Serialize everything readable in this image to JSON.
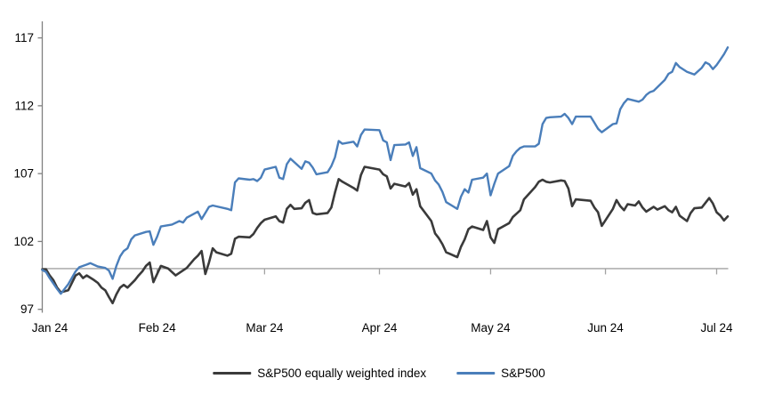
{
  "chart_data": {
    "type": "line",
    "title": "",
    "xlabel": "",
    "ylabel": "",
    "grid": false,
    "background": "#ffffff",
    "y_axis": {
      "ticks": [
        97,
        102,
        107,
        112,
        117
      ],
      "range": [
        97,
        117
      ],
      "axis_color": "#808080",
      "label_color": "#000000"
    },
    "x_axis": {
      "tick_labels": [
        "Jan 24",
        "Feb 24",
        "Mar 24",
        "Apr 24",
        "May 24",
        "Jun 24",
        "Jul 24"
      ],
      "tick_days": [
        0,
        31,
        60,
        91,
        121,
        152,
        182
      ],
      "days_range": [
        0,
        185
      ],
      "line_color": "#a2a2a2"
    },
    "baseline_value": 100,
    "legend_position": "bottom-center",
    "series": [
      {
        "name": "S&P500 equally weighted index",
        "color": "#3a3a3a",
        "width": 2.6,
        "points": [
          [
            0,
            99.95
          ],
          [
            1,
            99.95
          ],
          [
            2,
            99.5
          ],
          [
            3,
            99.15
          ],
          [
            4,
            98.6
          ],
          [
            5,
            98.25
          ],
          [
            7,
            98.4
          ],
          [
            8,
            98.95
          ],
          [
            9,
            99.5
          ],
          [
            10,
            99.65
          ],
          [
            11,
            99.3
          ],
          [
            12,
            99.5
          ],
          [
            14,
            99.15
          ],
          [
            15,
            98.95
          ],
          [
            16,
            98.6
          ],
          [
            17,
            98.4
          ],
          [
            18,
            97.9
          ],
          [
            19,
            97.45
          ],
          [
            20,
            98.1
          ],
          [
            21,
            98.6
          ],
          [
            22,
            98.8
          ],
          [
            23,
            98.6
          ],
          [
            25,
            99.15
          ],
          [
            26,
            99.5
          ],
          [
            27,
            99.8
          ],
          [
            28,
            100.2
          ],
          [
            29,
            100.45
          ],
          [
            30,
            99.0
          ],
          [
            32,
            100.2
          ],
          [
            34,
            100.0
          ],
          [
            36,
            99.5
          ],
          [
            39,
            100.05
          ],
          [
            41,
            100.7
          ],
          [
            42,
            100.95
          ],
          [
            43,
            101.3
          ],
          [
            44,
            99.6
          ],
          [
            45,
            100.45
          ],
          [
            46,
            101.5
          ],
          [
            47,
            101.2
          ],
          [
            50,
            100.95
          ],
          [
            51,
            101.1
          ],
          [
            52,
            102.2
          ],
          [
            53,
            102.35
          ],
          [
            56,
            102.3
          ],
          [
            57,
            102.55
          ],
          [
            58,
            103.0
          ],
          [
            59,
            103.35
          ],
          [
            60,
            103.6
          ],
          [
            63,
            103.85
          ],
          [
            64,
            103.5
          ],
          [
            65,
            103.4
          ],
          [
            66,
            104.4
          ],
          [
            67,
            104.7
          ],
          [
            68,
            104.4
          ],
          [
            70,
            104.45
          ],
          [
            71,
            104.85
          ],
          [
            72,
            105.05
          ],
          [
            73,
            104.1
          ],
          [
            74,
            104.0
          ],
          [
            77,
            104.1
          ],
          [
            78,
            104.5
          ],
          [
            79,
            105.6
          ],
          [
            80,
            106.6
          ],
          [
            81,
            106.4
          ],
          [
            84,
            105.95
          ],
          [
            85,
            105.75
          ],
          [
            86,
            106.9
          ],
          [
            87,
            107.5
          ],
          [
            91,
            107.3
          ],
          [
            92,
            106.95
          ],
          [
            93,
            106.8
          ],
          [
            94,
            105.9
          ],
          [
            95,
            106.25
          ],
          [
            98,
            106.05
          ],
          [
            99,
            106.3
          ],
          [
            100,
            105.45
          ],
          [
            101,
            105.85
          ],
          [
            102,
            104.6
          ],
          [
            105,
            103.5
          ],
          [
            106,
            102.6
          ],
          [
            107,
            102.25
          ],
          [
            108,
            101.8
          ],
          [
            109,
            101.2
          ],
          [
            112,
            100.85
          ],
          [
            113,
            101.6
          ],
          [
            114,
            102.15
          ],
          [
            115,
            102.9
          ],
          [
            116,
            103.1
          ],
          [
            119,
            102.85
          ],
          [
            120,
            103.5
          ],
          [
            121,
            102.3
          ],
          [
            122,
            101.9
          ],
          [
            123,
            102.9
          ],
          [
            126,
            103.35
          ],
          [
            127,
            103.8
          ],
          [
            128,
            104.05
          ],
          [
            129,
            104.3
          ],
          [
            130,
            105.1
          ],
          [
            133,
            106.0
          ],
          [
            134,
            106.4
          ],
          [
            135,
            106.55
          ],
          [
            136,
            106.4
          ],
          [
            137,
            106.35
          ],
          [
            140,
            106.5
          ],
          [
            141,
            106.45
          ],
          [
            142,
            105.9
          ],
          [
            143,
            104.6
          ],
          [
            144,
            105.1
          ],
          [
            148,
            105.0
          ],
          [
            149,
            104.5
          ],
          [
            150,
            104.15
          ],
          [
            151,
            103.15
          ],
          [
            154,
            104.4
          ],
          [
            155,
            105.05
          ],
          [
            156,
            104.6
          ],
          [
            157,
            104.3
          ],
          [
            158,
            104.75
          ],
          [
            160,
            104.65
          ],
          [
            161,
            104.95
          ],
          [
            162,
            104.5
          ],
          [
            163,
            104.2
          ],
          [
            165,
            104.55
          ],
          [
            166,
            104.35
          ],
          [
            168,
            104.6
          ],
          [
            169,
            104.3
          ],
          [
            170,
            104.15
          ],
          [
            171,
            104.55
          ],
          [
            172,
            103.9
          ],
          [
            174,
            103.5
          ],
          [
            175,
            104.1
          ],
          [
            176,
            104.45
          ],
          [
            178,
            104.5
          ],
          [
            180,
            105.2
          ],
          [
            181,
            104.8
          ],
          [
            182,
            104.15
          ],
          [
            183,
            103.9
          ],
          [
            184,
            103.55
          ],
          [
            185,
            103.85
          ]
        ]
      },
      {
        "name": "S&P500",
        "color": "#4a7eba",
        "width": 2.4,
        "points": [
          [
            0,
            99.9
          ],
          [
            1,
            99.75
          ],
          [
            2,
            99.3
          ],
          [
            4,
            98.5
          ],
          [
            5,
            98.15
          ],
          [
            7,
            98.85
          ],
          [
            9,
            99.8
          ],
          [
            10,
            100.1
          ],
          [
            12,
            100.3
          ],
          [
            13,
            100.4
          ],
          [
            15,
            100.15
          ],
          [
            17,
            100.05
          ],
          [
            18,
            99.85
          ],
          [
            19,
            99.25
          ],
          [
            20,
            100.2
          ],
          [
            21,
            100.9
          ],
          [
            22,
            101.3
          ],
          [
            23,
            101.5
          ],
          [
            24,
            102.15
          ],
          [
            25,
            102.45
          ],
          [
            28,
            102.7
          ],
          [
            29,
            102.75
          ],
          [
            30,
            101.75
          ],
          [
            31,
            102.35
          ],
          [
            32,
            103.1
          ],
          [
            35,
            103.25
          ],
          [
            37,
            103.5
          ],
          [
            38,
            103.4
          ],
          [
            39,
            103.75
          ],
          [
            42,
            104.2
          ],
          [
            43,
            103.65
          ],
          [
            44,
            104.1
          ],
          [
            45,
            104.55
          ],
          [
            46,
            104.65
          ],
          [
            50,
            104.4
          ],
          [
            51,
            104.3
          ],
          [
            52,
            106.35
          ],
          [
            53,
            106.65
          ],
          [
            56,
            106.55
          ],
          [
            57,
            106.6
          ],
          [
            58,
            106.45
          ],
          [
            59,
            106.7
          ],
          [
            60,
            107.3
          ],
          [
            63,
            107.5
          ],
          [
            64,
            106.7
          ],
          [
            65,
            106.6
          ],
          [
            66,
            107.7
          ],
          [
            67,
            108.1
          ],
          [
            70,
            107.35
          ],
          [
            71,
            107.9
          ],
          [
            72,
            107.8
          ],
          [
            73,
            107.45
          ],
          [
            74,
            106.95
          ],
          [
            77,
            107.1
          ],
          [
            78,
            107.55
          ],
          [
            79,
            108.2
          ],
          [
            80,
            109.4
          ],
          [
            81,
            109.2
          ],
          [
            84,
            109.35
          ],
          [
            85,
            109.0
          ],
          [
            86,
            109.85
          ],
          [
            87,
            110.25
          ],
          [
            91,
            110.2
          ],
          [
            92,
            109.45
          ],
          [
            93,
            109.3
          ],
          [
            94,
            108.0
          ],
          [
            95,
            109.1
          ],
          [
            98,
            109.15
          ],
          [
            99,
            109.3
          ],
          [
            100,
            108.3
          ],
          [
            101,
            108.95
          ],
          [
            102,
            107.4
          ],
          [
            105,
            107.0
          ],
          [
            106,
            106.5
          ],
          [
            107,
            106.2
          ],
          [
            108,
            105.65
          ],
          [
            109,
            104.9
          ],
          [
            112,
            104.4
          ],
          [
            113,
            105.3
          ],
          [
            114,
            105.85
          ],
          [
            115,
            105.6
          ],
          [
            116,
            106.55
          ],
          [
            119,
            106.7
          ],
          [
            120,
            107.0
          ],
          [
            121,
            105.4
          ],
          [
            122,
            106.25
          ],
          [
            123,
            107.0
          ],
          [
            126,
            107.55
          ],
          [
            127,
            108.3
          ],
          [
            128,
            108.65
          ],
          [
            129,
            108.9
          ],
          [
            130,
            109.0
          ],
          [
            133,
            109.0
          ],
          [
            134,
            109.2
          ],
          [
            135,
            110.65
          ],
          [
            136,
            111.1
          ],
          [
            137,
            111.15
          ],
          [
            140,
            111.2
          ],
          [
            141,
            111.4
          ],
          [
            142,
            111.1
          ],
          [
            143,
            110.65
          ],
          [
            144,
            111.2
          ],
          [
            148,
            111.2
          ],
          [
            149,
            110.75
          ],
          [
            150,
            110.3
          ],
          [
            151,
            110.05
          ],
          [
            154,
            110.65
          ],
          [
            155,
            110.7
          ],
          [
            156,
            111.75
          ],
          [
            157,
            112.2
          ],
          [
            158,
            112.5
          ],
          [
            161,
            112.3
          ],
          [
            162,
            112.45
          ],
          [
            163,
            112.8
          ],
          [
            164,
            113.0
          ],
          [
            165,
            113.1
          ],
          [
            168,
            113.9
          ],
          [
            169,
            114.35
          ],
          [
            170,
            114.5
          ],
          [
            171,
            115.15
          ],
          [
            172,
            114.85
          ],
          [
            174,
            114.5
          ],
          [
            176,
            114.3
          ],
          [
            178,
            114.8
          ],
          [
            179,
            115.2
          ],
          [
            180,
            115.05
          ],
          [
            181,
            114.7
          ],
          [
            182,
            115.0
          ],
          [
            183,
            115.4
          ],
          [
            184,
            115.8
          ],
          [
            185,
            116.3
          ]
        ]
      }
    ]
  },
  "legend": {
    "items": [
      {
        "label": "S&P500 equally weighted index",
        "color": "#3a3a3a"
      },
      {
        "label": "S&P500",
        "color": "#4a7eba"
      }
    ]
  }
}
